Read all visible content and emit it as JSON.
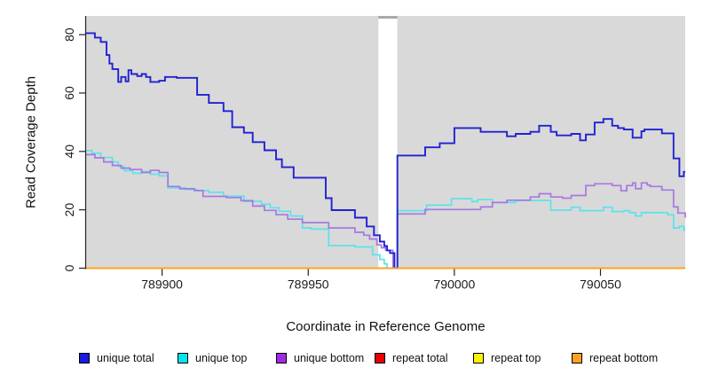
{
  "figure": {
    "xlabel": "Coordinate in Reference Genome",
    "ylabel": "Read Coverage Depth"
  },
  "legend": {
    "items": [
      {
        "label": "unique total",
        "color": "#1a1ae0"
      },
      {
        "label": "unique top",
        "color": "#00e5f0"
      },
      {
        "label": "unique bottom",
        "color": "#a428e8"
      },
      {
        "label": "repeat total",
        "color": "#e60000"
      },
      {
        "label": "repeat top",
        "color": "#fff200"
      },
      {
        "label": "repeat bottom",
        "color": "#ffa022"
      }
    ]
  },
  "chart_data": {
    "type": "line",
    "subtype": "step",
    "title": "",
    "xlabel": "Coordinate in Reference Genome",
    "ylabel": "Read Coverage Depth",
    "xlim": [
      789874,
      790079
    ],
    "ylim": [
      0,
      86.4
    ],
    "x_ticks": [
      789900,
      789950,
      790000,
      790050
    ],
    "y_ticks": [
      0,
      20,
      40,
      60,
      80
    ],
    "grid": false,
    "legend_position": "bottom",
    "layout": {
      "plot_bg": "#d9d9d9",
      "gap_band_color": "#ffffff",
      "gap_band_cap_color": "#a9a9a9",
      "axis_color": "#222222",
      "tick_label_color": "#1a1a1a",
      "gap_region": {
        "x_start": 789974,
        "x_end": 789980.5
      }
    },
    "series": [
      {
        "name": "repeat total",
        "color": "#e60000",
        "width": 1.7,
        "step_points": [
          [
            789874,
            0
          ],
          [
            790079,
            0
          ]
        ]
      },
      {
        "name": "repeat top",
        "color": "#fff200",
        "width": 1.7,
        "step_points": [
          [
            789874,
            0
          ],
          [
            790079,
            0
          ]
        ]
      },
      {
        "name": "unique top",
        "color": "#5ce3ea",
        "width": 1.7,
        "step_points": [
          [
            789874,
            40.3
          ],
          [
            789876,
            39.4
          ],
          [
            789879,
            37.9
          ],
          [
            789883,
            36.4
          ],
          [
            789885,
            34.9
          ],
          [
            789887,
            33.4
          ],
          [
            789890,
            32.5
          ],
          [
            789893,
            33.1
          ],
          [
            789896,
            32.2
          ],
          [
            789899,
            31.6
          ],
          [
            789902,
            27.5
          ],
          [
            789908,
            27
          ],
          [
            789912,
            26.5
          ],
          [
            789916,
            26
          ],
          [
            789921,
            24.7
          ],
          [
            789928,
            22.9
          ],
          [
            789934,
            21.9
          ],
          [
            789937,
            20.7
          ],
          [
            789940,
            19.5
          ],
          [
            789944,
            17.9
          ],
          [
            789948,
            13.8
          ],
          [
            789951,
            13.4
          ],
          [
            789957,
            7.7
          ],
          [
            789966,
            7.3
          ],
          [
            789972,
            4.6
          ],
          [
            789974.5,
            3
          ],
          [
            789976,
            1.5
          ],
          [
            789977,
            0
          ],
          [
            789980.5,
            19.7
          ],
          [
            789990.5,
            21.6
          ],
          [
            789999,
            23.8
          ],
          [
            790006,
            22.8
          ],
          [
            790008,
            23.5
          ],
          [
            790013,
            22.5
          ],
          [
            790021,
            23.2
          ],
          [
            790033,
            19.9
          ],
          [
            790040,
            20.9
          ],
          [
            790043,
            19.7
          ],
          [
            790051,
            20.9
          ],
          [
            790054,
            19.4
          ],
          [
            790058,
            19.7
          ],
          [
            790060,
            19
          ],
          [
            790062,
            17.9
          ],
          [
            790064,
            19
          ],
          [
            790073,
            18.3
          ],
          [
            790075,
            13.8
          ],
          [
            790077,
            14.3
          ],
          [
            790078.5,
            13
          ]
        ]
      },
      {
        "name": "unique bottom",
        "color": "#a678e2",
        "width": 1.7,
        "step_points": [
          [
            789874,
            38.9
          ],
          [
            789877,
            37.8
          ],
          [
            789880,
            36.4
          ],
          [
            789883,
            35.2
          ],
          [
            789886,
            34.3
          ],
          [
            789889,
            33.8
          ],
          [
            789893,
            32.8
          ],
          [
            789896,
            33.5
          ],
          [
            789899,
            32.8
          ],
          [
            789902,
            28
          ],
          [
            789906,
            27.2
          ],
          [
            789911,
            26.6
          ],
          [
            789914,
            24.6
          ],
          [
            789922,
            24.2
          ],
          [
            789927,
            23.1
          ],
          [
            789931,
            21.3
          ],
          [
            789935,
            19.8
          ],
          [
            789939,
            18.3
          ],
          [
            789943,
            16.8
          ],
          [
            789948,
            15.6
          ],
          [
            789957,
            13.8
          ],
          [
            789966,
            12.3
          ],
          [
            789969,
            11.3
          ],
          [
            789971,
            10
          ],
          [
            789973.5,
            8
          ],
          [
            789975,
            7
          ],
          [
            789976.5,
            6.1
          ],
          [
            789979,
            0
          ],
          [
            789980.5,
            18.6
          ],
          [
            789990,
            20.1
          ],
          [
            790009,
            21
          ],
          [
            790013,
            22.5
          ],
          [
            790018,
            23.3
          ],
          [
            790026,
            24.4
          ],
          [
            790029,
            25.5
          ],
          [
            790033,
            24.4
          ],
          [
            790037,
            24
          ],
          [
            790040,
            24.9
          ],
          [
            790045,
            28.3
          ],
          [
            790048,
            28.9
          ],
          [
            790054,
            28.3
          ],
          [
            790057,
            26.5
          ],
          [
            790059,
            28.3
          ],
          [
            790061,
            29.2
          ],
          [
            790062,
            27.2
          ],
          [
            790064,
            29.2
          ],
          [
            790066,
            28.5
          ],
          [
            790067,
            28
          ],
          [
            790071,
            26.8
          ],
          [
            790075,
            21
          ],
          [
            790076.5,
            18.9
          ],
          [
            790079,
            17.3
          ]
        ]
      },
      {
        "name": "unique total",
        "color": "#2121d3",
        "width": 1.9,
        "step_points": [
          [
            789874,
            80.5
          ],
          [
            789877,
            79
          ],
          [
            789879,
            77.5
          ],
          [
            789881,
            73
          ],
          [
            789882,
            70.1
          ],
          [
            789883,
            68.2
          ],
          [
            789885,
            63.8
          ],
          [
            789886,
            65.5
          ],
          [
            789887.5,
            64
          ],
          [
            789888.5,
            67.8
          ],
          [
            789889.5,
            66.5
          ],
          [
            789891.5,
            65.8
          ],
          [
            789893,
            66.5
          ],
          [
            789894.5,
            65.5
          ],
          [
            789896,
            63.8
          ],
          [
            789899,
            64.2
          ],
          [
            789901,
            65.5
          ],
          [
            789905,
            65.2
          ],
          [
            789912,
            59.4
          ],
          [
            789916,
            56.6
          ],
          [
            789921,
            53.8
          ],
          [
            789924,
            48.3
          ],
          [
            789928,
            46.4
          ],
          [
            789931,
            43.2
          ],
          [
            789935,
            40.4
          ],
          [
            789939,
            37.3
          ],
          [
            789941,
            34.6
          ],
          [
            789945,
            31
          ],
          [
            789956,
            24
          ],
          [
            789958,
            19.9
          ],
          [
            789966,
            17.3
          ],
          [
            789970,
            14.3
          ],
          [
            789972.5,
            11.3
          ],
          [
            789974.5,
            9.1
          ],
          [
            789976,
            7.6
          ],
          [
            789977,
            6.1
          ],
          [
            789978,
            5.2
          ],
          [
            789979.5,
            0
          ],
          [
            789980.5,
            38.6
          ],
          [
            789990,
            41.4
          ],
          [
            789995,
            42.8
          ],
          [
            790000,
            48
          ],
          [
            790009,
            46.7
          ],
          [
            790018,
            45.2
          ],
          [
            790021,
            46
          ],
          [
            790026,
            46.7
          ],
          [
            790029,
            48.8
          ],
          [
            790033,
            46.7
          ],
          [
            790035,
            45.5
          ],
          [
            790040,
            46
          ],
          [
            790043,
            43.8
          ],
          [
            790045,
            45.8
          ],
          [
            790048,
            49.9
          ],
          [
            790051,
            51.1
          ],
          [
            790054,
            48.8
          ],
          [
            790056,
            48
          ],
          [
            790058,
            47.5
          ],
          [
            790061,
            44.7
          ],
          [
            790064,
            46.9
          ],
          [
            790065,
            47.5
          ],
          [
            790071,
            46.2
          ],
          [
            790075,
            37.6
          ],
          [
            790077,
            31.5
          ],
          [
            790078.5,
            33
          ]
        ]
      },
      {
        "name": "repeat bottom",
        "color": "#ffa022",
        "width": 1.7,
        "step_points": [
          [
            789874,
            0
          ],
          [
            790079,
            0
          ]
        ]
      }
    ]
  }
}
